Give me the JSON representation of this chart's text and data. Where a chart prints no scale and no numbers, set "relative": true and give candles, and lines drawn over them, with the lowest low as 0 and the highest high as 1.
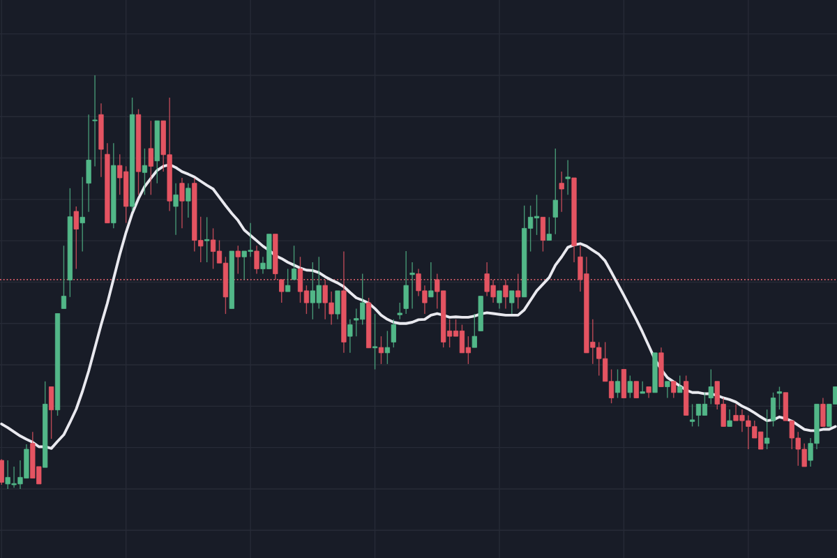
{
  "chart_data": {
    "type": "candlestick",
    "relative": true,
    "grid": true,
    "categories": [
      null,
      null,
      null,
      null,
      null,
      null,
      null,
      null,
      null,
      null,
      null,
      null,
      null,
      null,
      null,
      null,
      null,
      null,
      null,
      null,
      null,
      null,
      null,
      null,
      null,
      null,
      null,
      null,
      null,
      null,
      null,
      null,
      null,
      null,
      null,
      null,
      null,
      null,
      null,
      null,
      null,
      null,
      null,
      null,
      null,
      null,
      null,
      null,
      null,
      null,
      null,
      null,
      null,
      null,
      null,
      null,
      null,
      null,
      null,
      null,
      null,
      null,
      null,
      null,
      null,
      null,
      null,
      null,
      null,
      null,
      null,
      null,
      null,
      null,
      null,
      null,
      null,
      null,
      null,
      null,
      null,
      null,
      null,
      null,
      null,
      null,
      null,
      null,
      null,
      null,
      null,
      null,
      null,
      null,
      null,
      null,
      null,
      null,
      null,
      null,
      null,
      null,
      null,
      null,
      null,
      null,
      null,
      null,
      null,
      null,
      null,
      null,
      null,
      null,
      null,
      null,
      null,
      null,
      null,
      null,
      null,
      null,
      null,
      null,
      null,
      null,
      null,
      null,
      null,
      null,
      null,
      null,
      null,
      null,
      null
    ],
    "ohlc": [
      [
        0.069,
        0.072,
        0.01,
        0.016
      ],
      [
        0.012,
        0.069,
        0.0,
        0.028
      ],
      [
        0.01,
        0.054,
        0.003,
        0.013
      ],
      [
        0.012,
        0.069,
        0.0,
        0.028
      ],
      [
        0.026,
        0.108,
        0.026,
        0.096
      ],
      [
        0.11,
        0.138,
        0.026,
        0.026
      ],
      [
        0.054,
        0.054,
        0.012,
        0.012
      ],
      [
        0.052,
        0.26,
        0.052,
        0.205
      ],
      [
        0.247,
        0.247,
        0.121,
        0.191
      ],
      [
        0.191,
        0.424,
        0.177,
        0.424
      ],
      [
        0.436,
        0.588,
        0.436,
        0.466
      ],
      [
        0.505,
        0.727,
        0.464,
        0.658
      ],
      [
        0.671,
        0.683,
        0.532,
        0.628
      ],
      [
        0.643,
        0.754,
        0.574,
        0.657
      ],
      [
        0.739,
        0.905,
        0.67,
        0.795
      ],
      [
        0.89,
        1.0,
        0.78,
        0.892
      ],
      [
        0.905,
        0.932,
        0.754,
        0.821
      ],
      [
        0.809,
        0.836,
        0.643,
        0.643
      ],
      [
        0.643,
        0.836,
        0.63,
        0.782
      ],
      [
        0.782,
        0.809,
        0.711,
        0.752
      ],
      [
        0.767,
        0.78,
        0.643,
        0.683
      ],
      [
        0.683,
        0.946,
        0.672,
        0.905
      ],
      [
        0.905,
        0.918,
        0.711,
        0.767
      ],
      [
        0.765,
        0.823,
        0.711,
        0.782
      ],
      [
        0.823,
        0.89,
        0.711,
        0.78
      ],
      [
        0.793,
        0.89,
        0.739,
        0.89
      ],
      [
        0.89,
        0.89,
        0.767,
        0.808
      ],
      [
        0.808,
        0.946,
        0.672,
        0.696
      ],
      [
        0.683,
        0.739,
        0.614,
        0.711
      ],
      [
        0.739,
        0.752,
        0.63,
        0.696
      ],
      [
        0.696,
        0.739,
        0.656,
        0.727
      ],
      [
        0.739,
        0.751,
        0.574,
        0.601
      ],
      [
        0.601,
        0.658,
        0.548,
        0.587
      ],
      [
        0.6,
        0.657,
        0.548,
        0.603
      ],
      [
        0.602,
        0.63,
        0.532,
        0.574
      ],
      [
        0.575,
        0.601,
        0.546,
        0.546
      ],
      [
        0.546,
        0.561,
        0.423,
        0.464
      ],
      [
        0.436,
        0.575,
        0.436,
        0.575
      ],
      [
        0.575,
        0.588,
        0.52,
        0.561
      ],
      [
        0.561,
        0.575,
        0.506,
        0.575
      ],
      [
        0.574,
        0.643,
        0.561,
        0.577
      ],
      [
        0.575,
        0.588,
        0.52,
        0.532
      ],
      [
        0.532,
        0.561,
        0.52,
        0.546
      ],
      [
        0.532,
        0.616,
        0.532,
        0.616
      ],
      [
        0.616,
        0.616,
        0.506,
        0.52
      ],
      [
        0.506,
        0.506,
        0.45,
        0.477
      ],
      [
        0.477,
        0.532,
        0.477,
        0.492
      ],
      [
        0.506,
        0.588,
        0.506,
        0.532
      ],
      [
        0.532,
        0.561,
        0.45,
        0.477
      ],
      [
        0.479,
        0.492,
        0.423,
        0.45
      ],
      [
        0.45,
        0.548,
        0.41,
        0.479
      ],
      [
        0.45,
        0.561,
        0.436,
        0.492
      ],
      [
        0.492,
        0.506,
        0.41,
        0.45
      ],
      [
        0.45,
        0.477,
        0.397,
        0.423
      ],
      [
        0.423,
        0.479,
        0.41,
        0.479
      ],
      [
        0.479,
        0.574,
        0.329,
        0.355
      ],
      [
        0.369,
        0.41,
        0.329,
        0.397
      ],
      [
        0.408,
        0.436,
        0.369,
        0.412
      ],
      [
        0.41,
        0.52,
        0.397,
        0.45
      ],
      [
        0.45,
        0.462,
        0.341,
        0.341
      ],
      [
        0.341,
        0.423,
        0.289,
        0.344
      ],
      [
        0.342,
        0.369,
        0.302,
        0.329
      ],
      [
        0.329,
        0.382,
        0.302,
        0.342
      ],
      [
        0.355,
        0.41,
        0.342,
        0.397
      ],
      [
        0.421,
        0.45,
        0.41,
        0.425
      ],
      [
        0.436,
        0.575,
        0.423,
        0.492
      ],
      [
        0.518,
        0.548,
        0.436,
        0.522
      ],
      [
        0.52,
        0.532,
        0.466,
        0.479
      ],
      [
        0.479,
        0.492,
        0.423,
        0.45
      ],
      [
        0.464,
        0.548,
        0.464,
        0.479
      ],
      [
        0.506,
        0.52,
        0.436,
        0.477
      ],
      [
        0.479,
        0.479,
        0.342,
        0.355
      ],
      [
        0.382,
        0.41,
        0.342,
        0.369
      ],
      [
        0.382,
        0.41,
        0.369,
        0.369
      ],
      [
        0.382,
        0.397,
        0.329,
        0.329
      ],
      [
        0.342,
        0.369,
        0.302,
        0.329
      ],
      [
        0.342,
        0.423,
        0.342,
        0.369
      ],
      [
        0.382,
        0.466,
        0.382,
        0.466
      ],
      [
        0.52,
        0.548,
        0.466,
        0.477
      ],
      [
        0.492,
        0.506,
        0.45,
        0.464
      ],
      [
        0.45,
        0.479,
        0.436,
        0.479
      ],
      [
        0.492,
        0.506,
        0.436,
        0.464
      ],
      [
        0.45,
        0.479,
        0.423,
        0.479
      ],
      [
        0.479,
        0.52,
        0.436,
        0.464
      ],
      [
        0.464,
        0.685,
        0.464,
        0.63
      ],
      [
        0.63,
        0.685,
        0.574,
        0.657
      ],
      [
        0.655,
        0.711,
        0.614,
        0.659
      ],
      [
        0.657,
        0.657,
        0.574,
        0.601
      ],
      [
        0.601,
        0.657,
        0.601,
        0.616
      ],
      [
        0.657,
        0.823,
        0.616,
        0.698
      ],
      [
        0.739,
        0.767,
        0.67,
        0.725
      ],
      [
        0.75,
        0.795,
        0.711,
        0.754
      ],
      [
        0.752,
        0.752,
        0.548,
        0.588
      ],
      [
        0.561,
        0.588,
        0.477,
        0.506
      ],
      [
        0.52,
        0.561,
        0.329,
        0.329
      ],
      [
        0.355,
        0.41,
        0.302,
        0.342
      ],
      [
        0.342,
        0.355,
        0.274,
        0.315
      ],
      [
        0.315,
        0.355,
        0.26,
        0.26
      ],
      [
        0.26,
        0.289,
        0.207,
        0.22
      ],
      [
        0.233,
        0.289,
        0.22,
        0.26
      ],
      [
        0.289,
        0.289,
        0.22,
        0.22
      ],
      [
        0.233,
        0.274,
        0.22,
        0.26
      ],
      [
        0.26,
        0.26,
        0.22,
        0.22
      ],
      [
        0.231,
        0.26,
        0.231,
        0.235
      ],
      [
        0.247,
        0.247,
        0.22,
        0.233
      ],
      [
        0.233,
        0.329,
        0.233,
        0.329
      ],
      [
        0.329,
        0.342,
        0.247,
        0.247
      ],
      [
        0.247,
        0.26,
        0.22,
        0.26
      ],
      [
        0.26,
        0.26,
        0.22,
        0.233
      ],
      [
        0.233,
        0.274,
        0.233,
        0.247
      ],
      [
        0.26,
        0.274,
        0.178,
        0.178
      ],
      [
        0.163,
        0.205,
        0.151,
        0.167
      ],
      [
        0.178,
        0.205,
        0.151,
        0.205
      ],
      [
        0.178,
        0.233,
        0.178,
        0.205
      ],
      [
        0.22,
        0.289,
        0.205,
        0.247
      ],
      [
        0.26,
        0.26,
        0.192,
        0.205
      ],
      [
        0.205,
        0.22,
        0.151,
        0.151
      ],
      [
        0.151,
        0.192,
        0.151,
        0.165
      ],
      [
        0.178,
        0.205,
        0.165,
        0.165
      ],
      [
        0.178,
        0.192,
        0.138,
        0.165
      ],
      [
        0.165,
        0.178,
        0.096,
        0.151
      ],
      [
        0.151,
        0.165,
        0.123,
        0.123
      ],
      [
        0.138,
        0.138,
        0.096,
        0.096
      ],
      [
        0.11,
        0.192,
        0.096,
        0.123
      ],
      [
        0.165,
        0.233,
        0.151,
        0.22
      ],
      [
        0.231,
        0.247,
        0.192,
        0.235
      ],
      [
        0.233,
        0.233,
        0.165,
        0.165
      ],
      [
        0.165,
        0.165,
        0.096,
        0.123
      ],
      [
        0.123,
        0.138,
        0.056,
        0.096
      ],
      [
        0.096,
        0.11,
        0.054,
        0.054
      ],
      [
        0.069,
        0.123,
        0.054,
        0.11
      ],
      [
        0.11,
        0.205,
        0.096,
        0.205
      ],
      [
        0.205,
        0.22,
        0.151,
        0.151
      ],
      [
        0.151,
        0.205,
        0.151,
        0.205
      ],
      [
        0.205,
        0.247,
        0.205,
        0.247
      ]
    ],
    "colors": [
      "#e45462",
      "#52b788",
      "#52b788",
      "#52b788",
      "#52b788",
      "#e45462",
      "#e45462",
      "#52b788",
      "#e45462",
      "#52b788",
      "#52b788",
      "#52b788",
      "#e45462",
      "#52b788",
      "#52b788",
      "#52b788",
      "#e45462",
      "#e45462",
      "#52b788",
      "#e45462",
      "#e45462",
      "#52b788",
      "#e45462",
      "#52b788",
      "#e45462",
      "#52b788",
      "#e45462",
      "#e45462",
      "#52b788",
      "#e45462",
      "#52b788",
      "#e45462",
      "#e45462",
      "#52b788",
      "#e45462",
      "#e45462",
      "#e45462",
      "#52b788",
      "#e45462",
      "#52b788",
      "#52b788",
      "#e45462",
      "#52b788",
      "#52b788",
      "#e45462",
      "#e45462",
      "#52b788",
      "#52b788",
      "#e45462",
      "#e45462",
      "#52b788",
      "#52b788",
      "#e45462",
      "#e45462",
      "#52b788",
      "#e45462",
      "#52b788",
      "#52b788",
      "#52b788",
      "#e45462",
      "#52b788",
      "#e45462",
      "#52b788",
      "#52b788",
      "#52b788",
      "#52b788",
      "#52b788",
      "#e45462",
      "#e45462",
      "#52b788",
      "#e45462",
      "#e45462",
      "#e45462",
      "#e45462",
      "#e45462",
      "#e45462",
      "#52b788",
      "#52b788",
      "#e45462",
      "#e45462",
      "#52b788",
      "#e45462",
      "#52b788",
      "#e45462",
      "#52b788",
      "#52b788",
      "#52b788",
      "#e45462",
      "#52b788",
      "#52b788",
      "#e45462",
      "#52b788",
      "#e45462",
      "#e45462",
      "#e45462",
      "#e45462",
      "#e45462",
      "#e45462",
      "#e45462",
      "#52b788",
      "#e45462",
      "#52b788",
      "#e45462",
      "#52b788",
      "#e45462",
      "#52b788",
      "#e45462",
      "#52b788",
      "#e45462",
      "#52b788",
      "#e45462",
      "#52b788",
      "#52b788",
      "#52b788",
      "#52b788",
      "#e45462",
      "#e45462",
      "#52b788",
      "#e45462",
      "#e45462",
      "#e45462",
      "#e45462",
      "#e45462",
      "#52b788",
      "#52b788",
      "#52b788",
      "#e45462",
      "#e45462",
      "#e45462",
      "#e45462",
      "#52b788",
      "#52b788",
      "#e45462",
      "#52b788",
      "#52b788"
    ],
    "series": [
      {
        "type": "line",
        "color": "#e9e9ef",
        "values": [
          0.157,
          0.148,
          0.138,
          0.128,
          0.12,
          0.113,
          0.102,
          0.102,
          0.098,
          0.115,
          0.131,
          0.161,
          0.193,
          0.236,
          0.285,
          0.341,
          0.397,
          0.449,
          0.508,
          0.567,
          0.62,
          0.666,
          0.702,
          0.731,
          0.751,
          0.77,
          0.78,
          0.784,
          0.777,
          0.767,
          0.761,
          0.754,
          0.744,
          0.734,
          0.725,
          0.705,
          0.685,
          0.666,
          0.649,
          0.626,
          0.613,
          0.6,
          0.587,
          0.577,
          0.564,
          0.557,
          0.548,
          0.541,
          0.534,
          0.529,
          0.528,
          0.523,
          0.513,
          0.505,
          0.498,
          0.489,
          0.475,
          0.462,
          0.456,
          0.449,
          0.436,
          0.42,
          0.41,
          0.403,
          0.4,
          0.4,
          0.403,
          0.409,
          0.41,
          0.42,
          0.424,
          0.42,
          0.415,
          0.416,
          0.415,
          0.415,
          0.418,
          0.423,
          0.426,
          0.424,
          0.422,
          0.42,
          0.42,
          0.42,
          0.433,
          0.456,
          0.479,
          0.495,
          0.511,
          0.541,
          0.561,
          0.584,
          0.59,
          0.593,
          0.587,
          0.577,
          0.567,
          0.551,
          0.524,
          0.496,
          0.468,
          0.439,
          0.41,
          0.379,
          0.346,
          0.313,
          0.289,
          0.269,
          0.259,
          0.249,
          0.239,
          0.233,
          0.233,
          0.23,
          0.23,
          0.226,
          0.22,
          0.216,
          0.21,
          0.2,
          0.193,
          0.184,
          0.174,
          0.165,
          0.167,
          0.174,
          0.17,
          0.164,
          0.154,
          0.144,
          0.141,
          0.141,
          0.144,
          0.144,
          0.151
        ]
      }
    ],
    "ref_lines": [
      {
        "axis": "y",
        "value": 0.506,
        "color": "#e0606c",
        "line_style": "dotted"
      }
    ]
  }
}
